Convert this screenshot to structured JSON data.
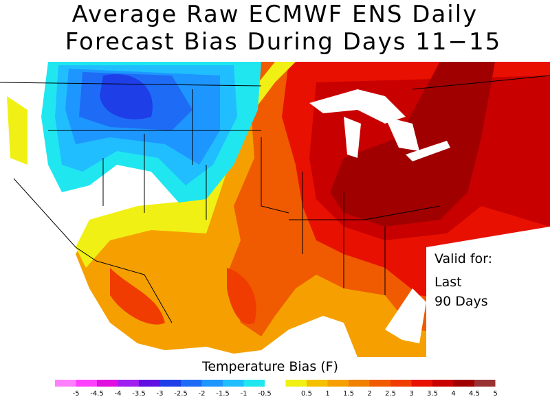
{
  "title_lines": [
    "Average Raw ECMWF ENS Daily",
    "Forecast Bias During Days 11−15"
  ],
  "valid_note": [
    "Valid for:",
    "Last",
    "90 Days"
  ],
  "colorbar": {
    "title": "Temperature Bias (F)",
    "ticks": [
      -5,
      -4.5,
      -4,
      -3.5,
      -3,
      -2.5,
      -2,
      -1.5,
      -1,
      -0.5,
      0.5,
      1,
      1.5,
      2,
      2.5,
      3,
      3.5,
      4,
      4.5,
      5
    ],
    "colors": [
      "#ff80ff",
      "#ff40ff",
      "#e010e0",
      "#a020f0",
      "#6010e0",
      "#1e3ee8",
      "#1e6cf5",
      "#1e96ff",
      "#20beff",
      "#20e6f0",
      "#ffffff",
      "#f0f014",
      "#f5c000",
      "#f5a000",
      "#f08000",
      "#f05a00",
      "#f03c00",
      "#e81000",
      "#c80000",
      "#a00000",
      "#993333"
    ]
  }
}
